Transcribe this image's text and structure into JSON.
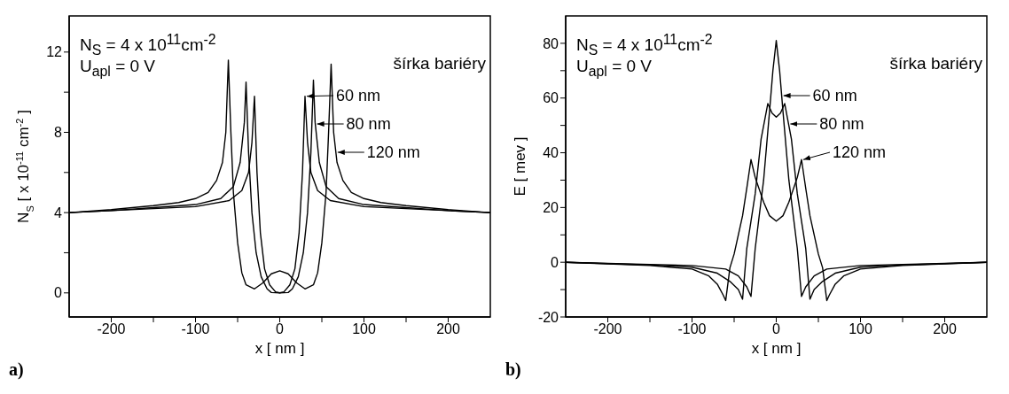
{
  "chart_data": [
    {
      "type": "line",
      "xlabel": "x [ nm ]",
      "ylabel": "N$_{S}$ [ x 10$^{-11}$ cm$^{-2}$ ]",
      "legend_title": "šírka bariéry",
      "annotations": [
        "N$_{S}$ = 4 x 10$^{11}$cm$^{-2}$",
        "U$_{apl}$ = 0 V",
        "a)"
      ],
      "legend": "top right",
      "grid": false,
      "marker": "none",
      "line_style": "solid",
      "xlim": [
        -250,
        250
      ],
      "xticks": [
        -200,
        {
          "value": -150,
          "label": null
        },
        -100,
        {
          "value": -50,
          "label": null
        },
        0,
        {
          "value": 50,
          "label": null
        },
        100,
        {
          "value": 150,
          "label": null
        },
        200
      ],
      "ylim": [
        -1.2,
        13.8
      ],
      "yticks": [
        0,
        {
          "value": 2,
          "label": null
        },
        4,
        {
          "value": 6,
          "label": null
        },
        8,
        {
          "value": 10,
          "label": null
        },
        12
      ],
      "series": [
        {
          "name": "60 nm",
          "color": "#000000",
          "x": [
            -250,
            -200,
            -150,
            -100,
            -60,
            -45,
            -37,
            -33,
            -30,
            -27,
            -23,
            -18,
            -12,
            -5,
            0,
            5,
            12,
            18,
            23,
            27,
            30,
            33,
            37,
            45,
            60,
            100,
            150,
            200,
            250
          ],
          "values": [
            4.0,
            4.1,
            4.2,
            4.3,
            4.6,
            5.1,
            6,
            7.5,
            9.8,
            6,
            3,
            1.2,
            0.4,
            0.05,
            0,
            0.05,
            0.4,
            1.2,
            3,
            6,
            9.8,
            7.5,
            6,
            5.1,
            4.6,
            4.3,
            4.2,
            4.1,
            4.0
          ]
        },
        {
          "name": "80 nm",
          "color": "#000000",
          "x": [
            -250,
            -200,
            -150,
            -100,
            -70,
            -55,
            -47,
            -42,
            -40,
            -37,
            -33,
            -28,
            -22,
            -15,
            -10,
            0,
            10,
            15,
            22,
            28,
            33,
            37,
            40,
            42,
            47,
            55,
            70,
            100,
            150,
            200,
            250
          ],
          "values": [
            4.0,
            4.1,
            4.25,
            4.4,
            4.7,
            5.3,
            6.5,
            8.5,
            10.5,
            7,
            4,
            2,
            0.8,
            0.2,
            0.02,
            0,
            0.02,
            0.2,
            0.8,
            2,
            4,
            7,
            10.6,
            8.5,
            6.5,
            5.3,
            4.7,
            4.4,
            4.25,
            4.1,
            4.0
          ]
        },
        {
          "name": "120 nm",
          "color": "#000000",
          "x": [
            -250,
            -200,
            -150,
            -120,
            -100,
            -85,
            -75,
            -68,
            -64,
            -61,
            -58,
            -55,
            -50,
            -45,
            -40,
            -30,
            -20,
            -10,
            0,
            10,
            20,
            30,
            40,
            45,
            50,
            55,
            58,
            61,
            64,
            68,
            75,
            85,
            100,
            120,
            150,
            200,
            250
          ],
          "values": [
            4.0,
            4.15,
            4.35,
            4.5,
            4.7,
            5.0,
            5.6,
            6.5,
            8,
            11.6,
            8,
            5,
            2.5,
            1.0,
            0.4,
            0.2,
            0.5,
            0.95,
            1.1,
            0.95,
            0.5,
            0.2,
            0.4,
            1.0,
            2.5,
            5,
            8,
            11.4,
            8,
            6.5,
            5.6,
            5.0,
            4.7,
            4.5,
            4.35,
            4.15,
            4.0
          ]
        }
      ]
    },
    {
      "type": "line",
      "xlabel": "x [ nm ]",
      "ylabel": "E [ mev ]",
      "legend_title": "šírka bariéry",
      "annotations": [
        "N$_{S}$ = 4 x 10$^{11}$cm$^{-2}$",
        "U$_{apl}$ = 0 V",
        "b)"
      ],
      "legend": "top right",
      "grid": false,
      "marker": "none",
      "line_style": "solid",
      "xlim": [
        -250,
        250
      ],
      "xticks": [
        -200,
        {
          "value": -150,
          "label": null
        },
        -100,
        {
          "value": -50,
          "label": null
        },
        0,
        {
          "value": 50,
          "label": null
        },
        100,
        {
          "value": 150,
          "label": null
        },
        200
      ],
      "ylim": [
        -20,
        90
      ],
      "yticks": [
        -20,
        {
          "value": -10,
          "label": null
        },
        0,
        {
          "value": 10,
          "label": null
        },
        20,
        {
          "value": 30,
          "label": null
        },
        40,
        {
          "value": 50,
          "label": null
        },
        60,
        {
          "value": 70,
          "label": null
        },
        80
      ],
      "series": [
        {
          "name": "60 nm",
          "color": "#000000",
          "x": [
            -250,
            -150,
            -100,
            -60,
            -45,
            -35,
            -30,
            -25,
            -15,
            -8,
            -4,
            0,
            4,
            8,
            15,
            25,
            30,
            35,
            45,
            60,
            100,
            150,
            250
          ],
          "values": [
            0,
            -0.8,
            -1.2,
            -2.5,
            -5,
            -9,
            -12.5,
            5,
            30,
            55,
            70,
            81,
            70,
            55,
            30,
            5,
            -12.5,
            -9,
            -5,
            -2.5,
            -1.2,
            -0.8,
            0
          ]
        },
        {
          "name": "80 nm",
          "color": "#000000",
          "x": [
            -250,
            -150,
            -100,
            -70,
            -55,
            -45,
            -40,
            -35,
            -25,
            -18,
            -10,
            -5,
            0,
            5,
            10,
            18,
            25,
            35,
            40,
            45,
            55,
            70,
            100,
            150,
            250
          ],
          "values": [
            0,
            -1,
            -1.8,
            -4,
            -7,
            -10,
            -13.5,
            5,
            25,
            45,
            58,
            54.5,
            53,
            54.5,
            58,
            45,
            25,
            5,
            -13.5,
            -10,
            -7,
            -4,
            -1.8,
            -1,
            0
          ]
        },
        {
          "name": "120 nm",
          "color": "#000000",
          "x": [
            -250,
            -150,
            -100,
            -80,
            -70,
            -63,
            -60,
            -55,
            -50,
            -40,
            -35,
            -30,
            -25,
            -15,
            -8,
            0,
            8,
            15,
            25,
            30,
            35,
            40,
            50,
            55,
            60,
            63,
            70,
            80,
            100,
            150,
            250
          ],
          "values": [
            0,
            -1.2,
            -2.5,
            -5,
            -8,
            -12,
            -14,
            -2,
            3,
            17,
            27,
            37.5,
            31,
            22,
            17,
            15,
            17,
            22,
            31,
            37.5,
            27,
            17,
            3,
            -2,
            -14,
            -12,
            -8,
            -5,
            -2.5,
            -1.2,
            0
          ]
        }
      ]
    }
  ]
}
